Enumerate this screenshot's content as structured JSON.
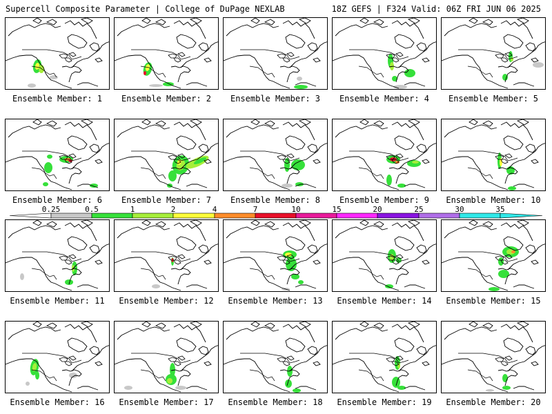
{
  "header": {
    "left": "Supercell Composite Parameter | College of DuPage NEXLAB",
    "right": "18Z GEFS | F324 Valid: 06Z FRI JUN 06 2025"
  },
  "legend": {
    "ticks": [
      "0.25",
      "0.5",
      "1",
      "2",
      "4",
      "7",
      "10",
      "15",
      "20",
      "25",
      "30",
      "35"
    ],
    "colors": [
      "#f8f8f8",
      "#c8c8c8",
      "#36e03a",
      "#a6ee3a",
      "#ffff3a",
      "#ff8c2a",
      "#e8102a",
      "#e81a9a",
      "#ff28ff",
      "#8a14e0",
      "#b06ee8",
      "#30e8e8"
    ]
  },
  "members": [
    {
      "label": "Ensemble Member: 1"
    },
    {
      "label": "Ensemble Member: 2"
    },
    {
      "label": "Ensemble Member: 3"
    },
    {
      "label": "Ensemble Member: 4"
    },
    {
      "label": "Ensemble Member: 5"
    },
    {
      "label": "Ensemble Member: 6"
    },
    {
      "label": "Ensemble Member: 7"
    },
    {
      "label": "Ensemble Member: 8"
    },
    {
      "label": "Ensemble Member: 9"
    },
    {
      "label": "Ensemble Member: 10"
    },
    {
      "label": "Ensemble Member: 11"
    },
    {
      "label": "Ensemble Member: 12"
    },
    {
      "label": "Ensemble Member: 13"
    },
    {
      "label": "Ensemble Member: 14"
    },
    {
      "label": "Ensemble Member: 15"
    },
    {
      "label": "Ensemble Member: 16"
    },
    {
      "label": "Ensemble Member: 17"
    },
    {
      "label": "Ensemble Member: 18"
    },
    {
      "label": "Ensemble Member: 19"
    },
    {
      "label": "Ensemble Member: 20"
    }
  ]
}
